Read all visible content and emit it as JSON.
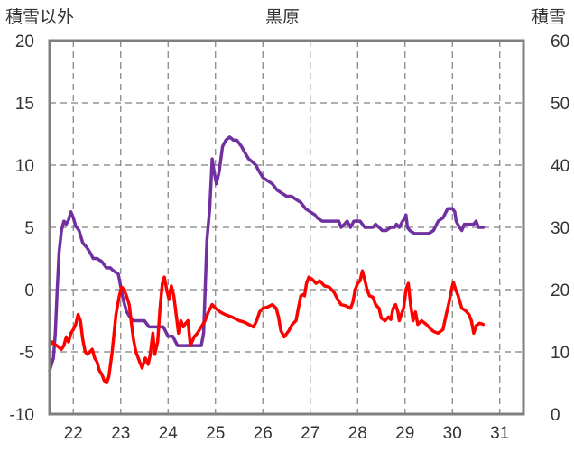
{
  "chart_data": {
    "type": "line",
    "title": "黒原",
    "left_axis_label": "積雪以外",
    "right_axis_label": "積雪",
    "left_ylim": [
      -10,
      20
    ],
    "left_yticks": [
      -10,
      -5,
      0,
      5,
      10,
      15,
      20
    ],
    "right_ylim": [
      0,
      60
    ],
    "right_yticks": [
      0,
      10,
      20,
      30,
      40,
      50,
      60
    ],
    "xlim": [
      21.5,
      31.5
    ],
    "xticks": [
      "22",
      "23",
      "24",
      "25",
      "26",
      "27",
      "28",
      "29",
      "30",
      "31"
    ],
    "grid": true,
    "series": [
      {
        "axis": "right",
        "color": "#7030a0",
        "points": [
          [
            21.5,
            7
          ],
          [
            21.58,
            9
          ],
          [
            21.62,
            13
          ],
          [
            21.66,
            20
          ],
          [
            21.7,
            26
          ],
          [
            21.75,
            29.5
          ],
          [
            21.8,
            31
          ],
          [
            21.85,
            30.5
          ],
          [
            21.9,
            31.2
          ],
          [
            21.95,
            32.5
          ],
          [
            22.0,
            31.5
          ],
          [
            22.05,
            30.2
          ],
          [
            22.12,
            29.5
          ],
          [
            22.2,
            27.5
          ],
          [
            22.28,
            26.8
          ],
          [
            22.35,
            26
          ],
          [
            22.42,
            25
          ],
          [
            22.5,
            25
          ],
          [
            22.6,
            24.5
          ],
          [
            22.7,
            23.5
          ],
          [
            22.78,
            23.5
          ],
          [
            22.85,
            23
          ],
          [
            22.95,
            22.5
          ],
          [
            23.05,
            18.5
          ],
          [
            23.12,
            16.5
          ],
          [
            23.2,
            15.5
          ],
          [
            23.28,
            15
          ],
          [
            23.38,
            15
          ],
          [
            23.5,
            15
          ],
          [
            23.6,
            14
          ],
          [
            23.8,
            14
          ],
          [
            23.9,
            14
          ],
          [
            24.0,
            12.5
          ],
          [
            24.1,
            12.5
          ],
          [
            24.2,
            11
          ],
          [
            24.35,
            11
          ],
          [
            24.5,
            11
          ],
          [
            24.7,
            11
          ],
          [
            24.75,
            13
          ],
          [
            24.82,
            28
          ],
          [
            24.88,
            33
          ],
          [
            24.93,
            41
          ],
          [
            24.97,
            39
          ],
          [
            25.02,
            37
          ],
          [
            25.08,
            39
          ],
          [
            25.15,
            43
          ],
          [
            25.22,
            44
          ],
          [
            25.3,
            44.5
          ],
          [
            25.38,
            44
          ],
          [
            25.45,
            44
          ],
          [
            25.55,
            43
          ],
          [
            25.62,
            42
          ],
          [
            25.7,
            41
          ],
          [
            25.78,
            40.5
          ],
          [
            25.85,
            40
          ],
          [
            25.92,
            39
          ],
          [
            26.0,
            38
          ],
          [
            26.1,
            37.5
          ],
          [
            26.2,
            37
          ],
          [
            26.3,
            36
          ],
          [
            26.4,
            35.5
          ],
          [
            26.5,
            35
          ],
          [
            26.6,
            35
          ],
          [
            26.7,
            34.5
          ],
          [
            26.8,
            34
          ],
          [
            26.9,
            33
          ],
          [
            27.0,
            32.5
          ],
          [
            27.1,
            32
          ],
          [
            27.15,
            31.5
          ],
          [
            27.25,
            31
          ],
          [
            27.4,
            31
          ],
          [
            27.5,
            31
          ],
          [
            27.6,
            31
          ],
          [
            27.65,
            30
          ],
          [
            27.72,
            30.5
          ],
          [
            27.78,
            31
          ],
          [
            27.85,
            30
          ],
          [
            27.92,
            31
          ],
          [
            28.05,
            31
          ],
          [
            28.15,
            30
          ],
          [
            28.25,
            30
          ],
          [
            28.32,
            30
          ],
          [
            28.38,
            30.5
          ],
          [
            28.45,
            30
          ],
          [
            28.52,
            29.5
          ],
          [
            28.6,
            29.5
          ],
          [
            28.7,
            30
          ],
          [
            28.78,
            30
          ],
          [
            28.82,
            30.5
          ],
          [
            28.88,
            30
          ],
          [
            28.95,
            31
          ],
          [
            29.0,
            31.5
          ],
          [
            29.02,
            32
          ],
          [
            29.05,
            30
          ],
          [
            29.1,
            29.5
          ],
          [
            29.2,
            29
          ],
          [
            29.35,
            29
          ],
          [
            29.5,
            29
          ],
          [
            29.6,
            29.5
          ],
          [
            29.7,
            31
          ],
          [
            29.8,
            31.5
          ],
          [
            29.9,
            33
          ],
          [
            30.0,
            33
          ],
          [
            30.05,
            32.5
          ],
          [
            30.08,
            31
          ],
          [
            30.15,
            30
          ],
          [
            30.2,
            29.5
          ],
          [
            30.25,
            30.5
          ],
          [
            30.35,
            30.5
          ],
          [
            30.45,
            30.5
          ],
          [
            30.5,
            31
          ],
          [
            30.55,
            30
          ],
          [
            30.65,
            30
          ]
        ]
      },
      {
        "axis": "left",
        "color": "#ff0000",
        "points": [
          [
            21.5,
            -4.5
          ],
          [
            21.55,
            -4.2
          ],
          [
            21.6,
            -4.4
          ],
          [
            21.65,
            -4.5
          ],
          [
            21.75,
            -4.8
          ],
          [
            21.8,
            -4.5
          ],
          [
            21.85,
            -3.8
          ],
          [
            21.9,
            -4.2
          ],
          [
            21.95,
            -3.5
          ],
          [
            22.0,
            -3.2
          ],
          [
            22.05,
            -2.8
          ],
          [
            22.1,
            -2
          ],
          [
            22.15,
            -2.5
          ],
          [
            22.2,
            -4
          ],
          [
            22.25,
            -5
          ],
          [
            22.3,
            -5.2
          ],
          [
            22.35,
            -5
          ],
          [
            22.4,
            -4.8
          ],
          [
            22.45,
            -5.5
          ],
          [
            22.5,
            -5.8
          ],
          [
            22.55,
            -6.5
          ],
          [
            22.6,
            -6.8
          ],
          [
            22.65,
            -7.3
          ],
          [
            22.7,
            -7.5
          ],
          [
            22.75,
            -7
          ],
          [
            22.82,
            -5
          ],
          [
            22.9,
            -2
          ],
          [
            22.97,
            -0.5
          ],
          [
            23.02,
            0.2
          ],
          [
            23.07,
            0
          ],
          [
            23.12,
            -0.5
          ],
          [
            23.18,
            -1.2
          ],
          [
            23.22,
            -2.5
          ],
          [
            23.27,
            -4
          ],
          [
            23.32,
            -5
          ],
          [
            23.4,
            -5.8
          ],
          [
            23.45,
            -6.3
          ],
          [
            23.52,
            -5.5
          ],
          [
            23.58,
            -6
          ],
          [
            23.62,
            -5.3
          ],
          [
            23.68,
            -3.5
          ],
          [
            23.72,
            -5.2
          ],
          [
            23.78,
            -4.2
          ],
          [
            23.83,
            -1.5
          ],
          [
            23.88,
            0.5
          ],
          [
            23.92,
            1
          ],
          [
            23.97,
            0
          ],
          [
            24.02,
            -0.8
          ],
          [
            24.07,
            0.3
          ],
          [
            24.12,
            -0.5
          ],
          [
            24.17,
            -2
          ],
          [
            24.22,
            -3.5
          ],
          [
            24.27,
            -2.5
          ],
          [
            24.32,
            -3
          ],
          [
            24.37,
            -2.7
          ],
          [
            24.42,
            -2.5
          ],
          [
            24.47,
            -4.5
          ],
          [
            24.55,
            -3.8
          ],
          [
            24.62,
            -3.5
          ],
          [
            24.7,
            -3
          ],
          [
            24.78,
            -2.5
          ],
          [
            24.85,
            -1.8
          ],
          [
            24.93,
            -1.2
          ],
          [
            25.0,
            -1.5
          ],
          [
            25.1,
            -1.8
          ],
          [
            25.2,
            -2
          ],
          [
            25.35,
            -2.2
          ],
          [
            25.5,
            -2.5
          ],
          [
            25.6,
            -2.6
          ],
          [
            25.7,
            -2.8
          ],
          [
            25.8,
            -3
          ],
          [
            25.87,
            -2.5
          ],
          [
            25.93,
            -1.8
          ],
          [
            26.0,
            -1.5
          ],
          [
            26.1,
            -1.4
          ],
          [
            26.2,
            -1.2
          ],
          [
            26.28,
            -1.5
          ],
          [
            26.33,
            -2.2
          ],
          [
            26.38,
            -3.3
          ],
          [
            26.45,
            -3.8
          ],
          [
            26.55,
            -3.3
          ],
          [
            26.62,
            -2.8
          ],
          [
            26.7,
            -2.5
          ],
          [
            26.75,
            -1.5
          ],
          [
            26.8,
            -0.5
          ],
          [
            26.85,
            -0.4
          ],
          [
            26.88,
            -0.5
          ],
          [
            26.92,
            0.5
          ],
          [
            26.97,
            1
          ],
          [
            27.05,
            0.8
          ],
          [
            27.12,
            0.5
          ],
          [
            27.2,
            0.7
          ],
          [
            27.3,
            0.3
          ],
          [
            27.4,
            0.2
          ],
          [
            27.5,
            -0.2
          ],
          [
            27.58,
            -0.8
          ],
          [
            27.65,
            -1.2
          ],
          [
            27.75,
            -1.3
          ],
          [
            27.85,
            -1.5
          ],
          [
            27.9,
            -1
          ],
          [
            27.95,
            0
          ],
          [
            28.0,
            0.5
          ],
          [
            28.05,
            0.7
          ],
          [
            28.1,
            1.5
          ],
          [
            28.15,
            0.8
          ],
          [
            28.2,
            0
          ],
          [
            28.25,
            -0.5
          ],
          [
            28.32,
            -0.6
          ],
          [
            28.38,
            -1.2
          ],
          [
            28.45,
            -1.5
          ],
          [
            28.5,
            -2.3
          ],
          [
            28.58,
            -2.5
          ],
          [
            28.65,
            -2.2
          ],
          [
            28.7,
            -2.4
          ],
          [
            28.75,
            -1.5
          ],
          [
            28.8,
            -1.2
          ],
          [
            28.85,
            -1.8
          ],
          [
            28.88,
            -2.5
          ],
          [
            28.92,
            -2
          ],
          [
            28.97,
            -1.5
          ],
          [
            29.02,
            0
          ],
          [
            29.07,
            0.5
          ],
          [
            29.12,
            -1.3
          ],
          [
            29.17,
            -2.5
          ],
          [
            29.22,
            -1.8
          ],
          [
            29.27,
            -2.8
          ],
          [
            29.35,
            -2.5
          ],
          [
            29.45,
            -2.8
          ],
          [
            29.55,
            -3.2
          ],
          [
            29.62,
            -3.4
          ],
          [
            29.7,
            -3.5
          ],
          [
            29.8,
            -3.2
          ],
          [
            29.87,
            -2
          ],
          [
            29.93,
            -1
          ],
          [
            29.98,
            0
          ],
          [
            30.02,
            0.6
          ],
          [
            30.07,
            0
          ],
          [
            30.12,
            -0.5
          ],
          [
            30.2,
            -1.5
          ],
          [
            30.28,
            -1.7
          ],
          [
            30.35,
            -2
          ],
          [
            30.4,
            -2.5
          ],
          [
            30.45,
            -3.5
          ],
          [
            30.5,
            -2.9
          ],
          [
            30.57,
            -2.7
          ],
          [
            30.65,
            -2.8
          ]
        ]
      }
    ]
  }
}
